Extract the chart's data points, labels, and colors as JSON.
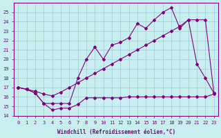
{
  "xlabel": "Windchill (Refroidissement éolien,°C)",
  "bg_color": "#c8eef0",
  "grid_color": "#a0c8d8",
  "line_color": "#800080",
  "xlim": [
    -0.5,
    23.5
  ],
  "ylim": [
    14,
    26
  ],
  "xticks": [
    0,
    1,
    2,
    3,
    4,
    5,
    6,
    7,
    8,
    9,
    10,
    11,
    12,
    13,
    14,
    15,
    16,
    17,
    18,
    19,
    20,
    21,
    22,
    23
  ],
  "yticks": [
    14,
    15,
    16,
    17,
    18,
    19,
    20,
    21,
    22,
    23,
    24,
    25
  ],
  "line1_x": [
    0,
    1,
    2,
    3,
    4,
    5,
    6,
    7,
    8,
    9,
    10,
    11,
    12,
    13,
    14,
    15,
    16,
    17,
    18,
    19,
    20,
    21,
    22,
    23
  ],
  "line1_y": [
    17.0,
    16.8,
    16.4,
    15.3,
    14.6,
    14.8,
    14.8,
    15.2,
    15.9,
    15.9,
    15.9,
    15.9,
    15.9,
    16.0,
    16.0,
    16.0,
    16.0,
    16.0,
    16.0,
    16.0,
    16.0,
    16.0,
    16.0,
    16.3
  ],
  "line2_x": [
    0,
    1,
    2,
    3,
    4,
    5,
    6,
    7,
    8,
    9,
    10,
    11,
    12,
    13,
    14,
    15,
    16,
    17,
    18,
    19,
    20,
    21,
    22,
    23
  ],
  "line2_y": [
    17.0,
    16.8,
    16.4,
    15.3,
    15.3,
    15.3,
    15.3,
    18.0,
    20.0,
    21.3,
    20.0,
    21.5,
    21.8,
    22.3,
    23.8,
    23.3,
    24.2,
    25.0,
    25.5,
    23.3,
    24.2,
    19.5,
    18.0,
    16.4
  ],
  "line3_x": [
    0,
    1,
    2,
    3,
    4,
    5,
    6,
    7,
    8,
    9,
    10,
    11,
    12,
    13,
    14,
    15,
    16,
    17,
    18,
    19,
    20,
    21,
    22,
    23
  ],
  "line3_y": [
    17.0,
    16.8,
    16.6,
    16.3,
    16.1,
    16.5,
    17.0,
    17.5,
    18.0,
    18.5,
    19.0,
    19.5,
    20.0,
    20.5,
    21.0,
    21.5,
    22.0,
    22.5,
    23.0,
    23.5,
    24.2,
    24.2,
    24.2,
    16.4
  ]
}
